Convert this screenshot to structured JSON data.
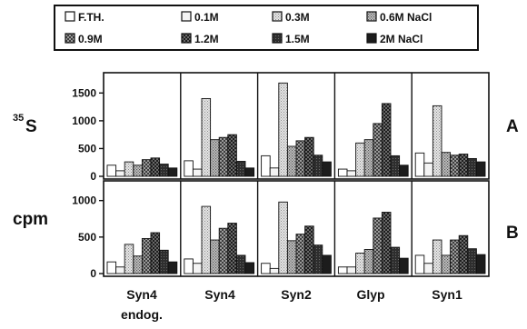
{
  "chart_data": {
    "type": "bar",
    "title": "",
    "categories": [
      "Syn4\nendog.",
      "Syn4",
      "Syn2",
      "Glyp",
      "Syn1"
    ],
    "series": [
      {
        "name": "F.TH.",
        "color": "#ffffff"
      },
      {
        "name": "0.1M",
        "color": "#f4f4f4"
      },
      {
        "name": "0.3M",
        "color": "#c8c8c8"
      },
      {
        "name": "0.6M NaCl",
        "color": "#b0b0b0"
      },
      {
        "name": "0.9M",
        "color": "#8c8c8c"
      },
      {
        "name": "1.2M",
        "color": "#6a6a6a"
      },
      {
        "name": "1.5M",
        "color": "#444444"
      },
      {
        "name": "2M NaCl",
        "color": "#222222"
      }
    ],
    "panels": [
      {
        "letter": "A",
        "ylabel_prefix": "35",
        "ylabel": "S",
        "yticks": [
          0,
          500,
          1000,
          1500
        ],
        "ylim": [
          0,
          1800
        ],
        "values": [
          [
            200,
            100,
            260,
            200,
            300,
            330,
            220,
            150
          ],
          [
            280,
            130,
            1400,
            660,
            700,
            750,
            270,
            150
          ],
          [
            370,
            150,
            1680,
            540,
            640,
            700,
            380,
            260
          ],
          [
            130,
            100,
            600,
            660,
            950,
            1310,
            370,
            200
          ],
          [
            420,
            240,
            1270,
            430,
            380,
            400,
            320,
            260
          ]
        ]
      },
      {
        "letter": "B",
        "ylabel_prefix": "",
        "ylabel": "cpm",
        "yticks": [
          0,
          500,
          1000
        ],
        "ylim": [
          0,
          1220
        ],
        "values": [
          [
            160,
            90,
            400,
            240,
            480,
            560,
            320,
            160
          ],
          [
            200,
            140,
            920,
            460,
            620,
            690,
            250,
            150
          ],
          [
            140,
            70,
            980,
            450,
            540,
            650,
            390,
            250
          ],
          [
            90,
            90,
            280,
            330,
            760,
            840,
            360,
            210
          ],
          [
            250,
            140,
            460,
            250,
            460,
            520,
            340,
            260
          ]
        ]
      }
    ],
    "grid": false,
    "legend": "top"
  },
  "category_labels": {
    "c0_line1": "Syn4",
    "c0_line2": "endog.",
    "c1": "Syn4",
    "c2": "Syn2",
    "c3": "Glyp",
    "c4": "Syn1"
  },
  "legend_labels": {
    "s0": "F.TH.",
    "s1": "0.1M",
    "s2": "0.3M",
    "s3": "0.6M NaCl",
    "s4": "0.9M",
    "s5": "1.2M",
    "s6": "1.5M",
    "s7": "2M NaCl"
  },
  "side_labels": {
    "top_prefix": "35",
    "top": "S",
    "bottom": "cpm",
    "letter_a": "A",
    "letter_b": "B"
  }
}
